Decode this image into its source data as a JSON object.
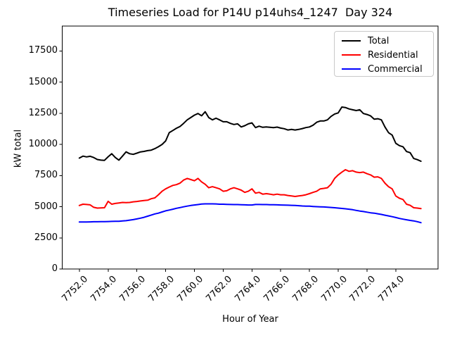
{
  "chart_data": {
    "type": "line",
    "title": "Timeseries Load for P14U p14uhs4_1247  Day 324",
    "xlabel": "Hour of Year",
    "ylabel": "kW total",
    "xlim": [
      7750.81,
      7776.94
    ],
    "ylim": [
      0,
      19500
    ],
    "grid": false,
    "legend": {
      "position": "upper right",
      "entries": [
        "Total",
        "Residential",
        "Commercial"
      ]
    },
    "x_ticks": {
      "values": [
        7752,
        7754,
        7756,
        7758,
        7760,
        7762,
        7764,
        7766,
        7768,
        7770,
        7772,
        7774
      ],
      "labels": [
        "7752.0",
        "7754.0",
        "7756.0",
        "7758.0",
        "7760.0",
        "7762.0",
        "7764.0",
        "7766.0",
        "7768.0",
        "7770.0",
        "7772.0",
        "7774.0"
      ]
    },
    "y_ticks": {
      "values": [
        0,
        2500,
        5000,
        7500,
        10000,
        12500,
        15000,
        17500
      ],
      "labels": [
        "0",
        "2500",
        "5000",
        "7500",
        "10000",
        "12500",
        "15000",
        "17500"
      ]
    },
    "x": {
      "start": 7752.0,
      "step": 0.25,
      "count": 96
    },
    "series": [
      {
        "name": "Total",
        "color": "#000000",
        "values": [
          8900,
          9060,
          9000,
          9050,
          8950,
          8790,
          8740,
          8720,
          9010,
          9250,
          8950,
          8740,
          9060,
          9400,
          9250,
          9200,
          9300,
          9400,
          9440,
          9500,
          9540,
          9660,
          9810,
          10000,
          10280,
          10940,
          11120,
          11300,
          11440,
          11690,
          11970,
          12160,
          12350,
          12480,
          12300,
          12620,
          12150,
          11970,
          12100,
          11970,
          11820,
          11820,
          11690,
          11600,
          11650,
          11400,
          11500,
          11650,
          11730,
          11350,
          11460,
          11370,
          11400,
          11370,
          11350,
          11390,
          11310,
          11260,
          11160,
          11200,
          11160,
          11200,
          11270,
          11350,
          11400,
          11540,
          11780,
          11880,
          11880,
          11970,
          12250,
          12440,
          12530,
          13000,
          12960,
          12850,
          12780,
          12720,
          12780,
          12480,
          12400,
          12290,
          12030,
          12060,
          11970,
          11400,
          10940,
          10750,
          10090,
          9900,
          9810,
          9430,
          9340,
          8870,
          8780,
          8650
        ]
      },
      {
        "name": "Residential",
        "color": "#ff0000",
        "values": [
          5100,
          5200,
          5180,
          5150,
          4950,
          4890,
          4900,
          4920,
          5430,
          5200,
          5260,
          5300,
          5340,
          5330,
          5340,
          5390,
          5420,
          5460,
          5500,
          5520,
          5640,
          5710,
          5960,
          6240,
          6430,
          6580,
          6710,
          6770,
          6890,
          7140,
          7270,
          7180,
          7080,
          7270,
          6990,
          6800,
          6520,
          6610,
          6520,
          6430,
          6240,
          6280,
          6430,
          6520,
          6430,
          6330,
          6150,
          6240,
          6430,
          6090,
          6150,
          6010,
          6050,
          6010,
          5960,
          6010,
          5960,
          5960,
          5900,
          5860,
          5820,
          5860,
          5900,
          5960,
          6050,
          6150,
          6240,
          6430,
          6470,
          6520,
          6800,
          7270,
          7550,
          7780,
          7970,
          7840,
          7890,
          7780,
          7740,
          7780,
          7650,
          7550,
          7370,
          7400,
          7270,
          6890,
          6610,
          6430,
          5860,
          5680,
          5580,
          5200,
          5110,
          4920,
          4890,
          4850
        ]
      },
      {
        "name": "Commercial",
        "color": "#0000ff",
        "values": [
          3770,
          3770,
          3775,
          3780,
          3790,
          3790,
          3800,
          3805,
          3810,
          3820,
          3825,
          3830,
          3860,
          3880,
          3920,
          3960,
          4020,
          4080,
          4150,
          4240,
          4330,
          4420,
          4480,
          4580,
          4670,
          4730,
          4800,
          4870,
          4930,
          4990,
          5050,
          5100,
          5140,
          5170,
          5210,
          5230,
          5230,
          5230,
          5220,
          5200,
          5200,
          5190,
          5180,
          5170,
          5170,
          5160,
          5150,
          5140,
          5140,
          5180,
          5180,
          5170,
          5170,
          5160,
          5160,
          5150,
          5140,
          5130,
          5120,
          5110,
          5100,
          5080,
          5060,
          5050,
          5040,
          5020,
          5000,
          4990,
          4980,
          4960,
          4940,
          4920,
          4890,
          4860,
          4830,
          4800,
          4760,
          4700,
          4650,
          4610,
          4560,
          4510,
          4480,
          4430,
          4380,
          4320,
          4260,
          4200,
          4130,
          4060,
          4000,
          3950,
          3900,
          3860,
          3800,
          3720
        ]
      }
    ]
  }
}
